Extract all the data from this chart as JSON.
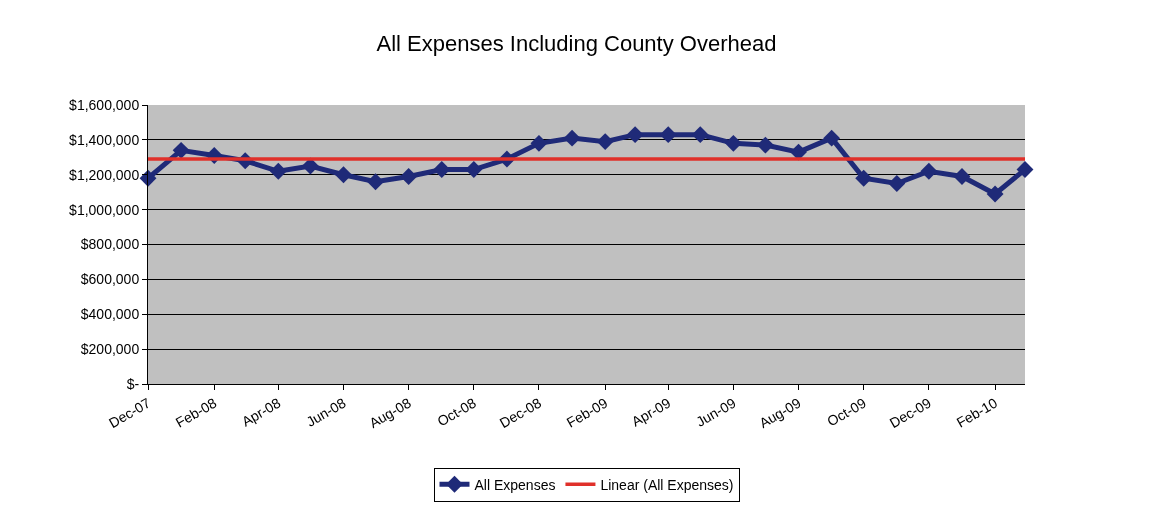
{
  "chart_data": {
    "type": "line",
    "title": "All Expenses Including County Overhead",
    "x": [
      "2007-12",
      "2008-01",
      "2008-02",
      "2008-03",
      "2008-04",
      "2008-05",
      "2008-06",
      "2008-07",
      "2008-08",
      "2008-09",
      "2008-10",
      "2008-11",
      "2008-12",
      "2009-01",
      "2009-02",
      "2009-03",
      "2009-04",
      "2009-05",
      "2009-06",
      "2009-07",
      "2009-08",
      "2009-09",
      "2009-10",
      "2009-11",
      "2009-12",
      "2010-01",
      "2010-02",
      "2010-03"
    ],
    "series": [
      {
        "name": "All Expenses",
        "color": "#1f2a78",
        "marker": "diamond",
        "values": [
          1180000,
          1340000,
          1310000,
          1280000,
          1220000,
          1250000,
          1200000,
          1160000,
          1190000,
          1230000,
          1230000,
          1290000,
          1380000,
          1410000,
          1390000,
          1430000,
          1430000,
          1430000,
          1380000,
          1370000,
          1330000,
          1410000,
          1180000,
          1150000,
          1220000,
          1190000,
          1090000,
          1230000
        ]
      },
      {
        "name": "Linear (All Expenses)",
        "type": "line",
        "color": "#e0302a",
        "marker": "none",
        "x": [
          "2007-12",
          "2010-03"
        ],
        "values": [
          1290000,
          1290000
        ]
      }
    ],
    "xlim": [
      "2007-12",
      "2010-03"
    ],
    "xticks": [
      {
        "value": "2007-12",
        "label": "Dec-07"
      },
      {
        "value": "2008-02",
        "label": "Feb-08"
      },
      {
        "value": "2008-04",
        "label": "Apr-08"
      },
      {
        "value": "2008-06",
        "label": "Jun-08"
      },
      {
        "value": "2008-08",
        "label": "Aug-08"
      },
      {
        "value": "2008-10",
        "label": "Oct-08"
      },
      {
        "value": "2008-12",
        "label": "Dec-08"
      },
      {
        "value": "2009-02",
        "label": "Feb-09"
      },
      {
        "value": "2009-04",
        "label": "Apr-09"
      },
      {
        "value": "2009-06",
        "label": "Jun-09"
      },
      {
        "value": "2009-08",
        "label": "Aug-09"
      },
      {
        "value": "2009-10",
        "label": "Oct-09"
      },
      {
        "value": "2009-12",
        "label": "Dec-09"
      },
      {
        "value": "2010-02",
        "label": "Feb-10"
      }
    ],
    "ylim": [
      0,
      1600000
    ],
    "yticks": [
      {
        "value": 0,
        "label": "$-"
      },
      {
        "value": 200000,
        "label": "$200,000"
      },
      {
        "value": 400000,
        "label": "$400,000"
      },
      {
        "value": 600000,
        "label": "$600,000"
      },
      {
        "value": 800000,
        "label": "$800,000"
      },
      {
        "value": 1000000,
        "label": "$1,000,000"
      },
      {
        "value": 1200000,
        "label": "$1,200,000"
      },
      {
        "value": 1400000,
        "label": "$1,400,000"
      },
      {
        "value": 1600000,
        "label": "$1,600,000"
      }
    ],
    "grid": "y",
    "legend": "bottom",
    "line_style": "solid"
  }
}
